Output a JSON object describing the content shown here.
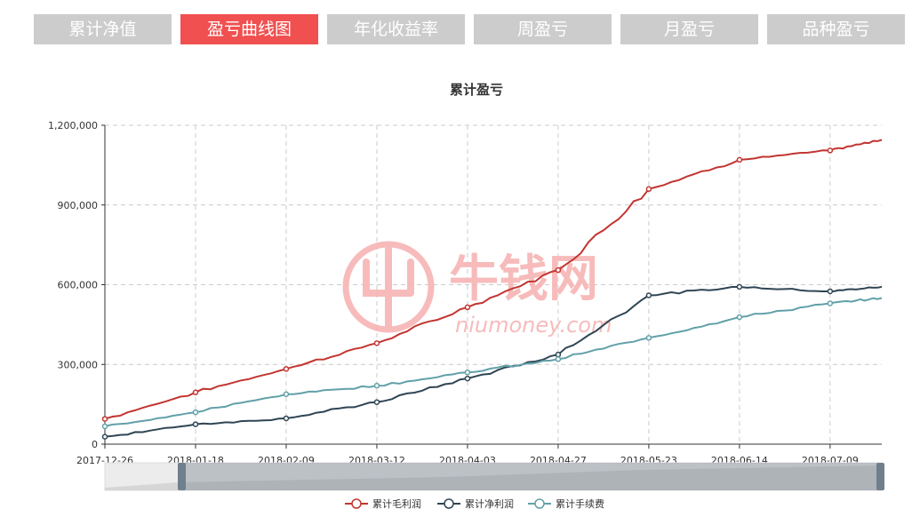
{
  "tabs": [
    {
      "label": "累计净值",
      "active": false
    },
    {
      "label": "盈亏曲线图",
      "active": true
    },
    {
      "label": "年化收益率",
      "active": false
    },
    {
      "label": "周盈亏",
      "active": false
    },
    {
      "label": "月盈亏",
      "active": false
    },
    {
      "label": "品种盈亏",
      "active": false
    }
  ],
  "colors": {
    "tab_active": "#f05050",
    "tab_inactive": "#cccccc",
    "series_gross": "#c23531",
    "series_net": "#2f4554",
    "series_fee": "#61a0a8",
    "watermark": "#f7b4b4"
  },
  "watermark": {
    "brand": "牛钱网",
    "domain": "niumoney.com"
  },
  "chart_data": {
    "type": "line",
    "title": "累计盈亏",
    "xlabel": "",
    "ylabel": "",
    "ylim": [
      0,
      1200000
    ],
    "y_ticks": [
      "0",
      "300,000",
      "600,000",
      "900,000",
      "1,200,000"
    ],
    "x_ticks": [
      "2017-12-26",
      "2018-01-18",
      "2018-02-09",
      "2018-03-12",
      "2018-04-03",
      "2018-04-27",
      "2018-05-23",
      "2018-06-14",
      "2018-07-09"
    ],
    "grid": true,
    "legend_position": "bottom",
    "data_zoom": true,
    "series": [
      {
        "name": "累计毛利润",
        "color": "#c23531",
        "values": [
          95000,
          195000,
          283000,
          380000,
          515000,
          655000,
          960000,
          1070000,
          1105000,
          1145000
        ]
      },
      {
        "name": "累计净利润",
        "color": "#2f4554",
        "values": [
          28000,
          75000,
          97000,
          158000,
          247000,
          337000,
          560000,
          592000,
          575000,
          592000
        ]
      },
      {
        "name": "累计手续费",
        "color": "#61a0a8",
        "values": [
          67000,
          120000,
          188000,
          220000,
          270000,
          320000,
          400000,
          478000,
          530000,
          550000
        ]
      }
    ]
  }
}
